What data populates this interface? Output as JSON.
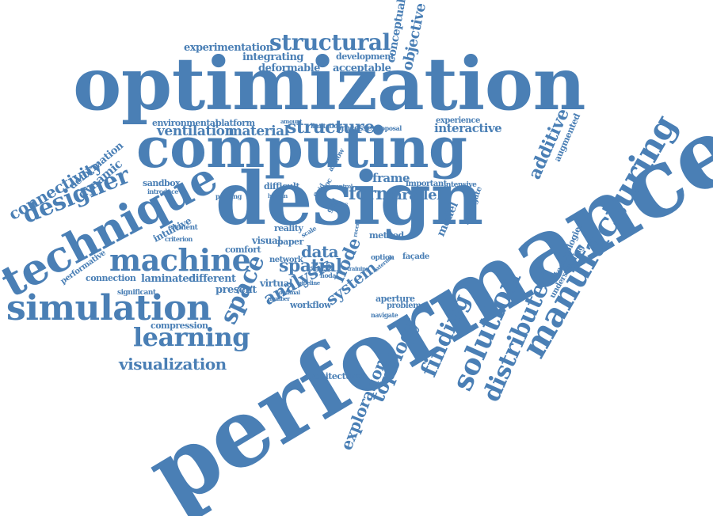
{
  "word_cloud": {
    "color": "#4a7fb5",
    "words": [
      {
        "id": "performance",
        "text": "performance"
      },
      {
        "id": "optimization",
        "text": "optimization"
      },
      {
        "id": "computing",
        "text": "computing"
      },
      {
        "id": "design",
        "text": "design"
      },
      {
        "id": "technique",
        "text": "technique"
      },
      {
        "id": "simulation",
        "text": "simulation"
      },
      {
        "id": "manufacturing",
        "text": "manufacturing"
      },
      {
        "id": "machine",
        "text": "machine"
      },
      {
        "id": "learning",
        "text": "learning"
      },
      {
        "id": "solution",
        "text": "solution"
      },
      {
        "id": "distributed",
        "text": "distributed"
      },
      {
        "id": "structural",
        "text": "structural"
      },
      {
        "id": "designer",
        "text": "designer"
      },
      {
        "id": "connectivity",
        "text": "connectivity"
      },
      {
        "id": "structure",
        "text": "structure"
      },
      {
        "id": "visualization",
        "text": "visualization"
      },
      {
        "id": "finding",
        "text": "finding"
      },
      {
        "id": "topology",
        "text": "topology"
      },
      {
        "id": "exploration",
        "text": "exploration"
      },
      {
        "id": "space",
        "text": "space"
      },
      {
        "id": "form",
        "text": "form"
      },
      {
        "id": "parallel",
        "text": "parallel"
      },
      {
        "id": "spatial",
        "text": "spatial"
      },
      {
        "id": "analysis",
        "text": "analysis"
      },
      {
        "id": "system",
        "text": "system"
      },
      {
        "id": "node",
        "text": "node"
      },
      {
        "id": "additive",
        "text": "additive"
      },
      {
        "id": "objective",
        "text": "objective"
      },
      {
        "id": "conceptual",
        "text": "conceptual"
      },
      {
        "id": "interactive",
        "text": "interactive"
      },
      {
        "id": "material",
        "text": "material"
      },
      {
        "id": "ventilation",
        "text": "ventilation"
      },
      {
        "id": "data",
        "text": "data"
      },
      {
        "id": "frame",
        "text": "frame"
      },
      {
        "id": "model",
        "text": "model"
      },
      {
        "id": "dynamic",
        "text": "dynamic"
      },
      {
        "id": "deformation",
        "text": "deformation"
      },
      {
        "id": "experimentation",
        "text": "experimentation"
      },
      {
        "id": "integrating",
        "text": "integrating"
      },
      {
        "id": "deformable",
        "text": "deformable"
      },
      {
        "id": "development",
        "text": "development"
      },
      {
        "id": "acceptable",
        "text": "acceptable"
      },
      {
        "id": "environmental",
        "text": "environmental"
      },
      {
        "id": "platform",
        "text": "platform"
      },
      {
        "id": "laminated",
        "text": "laminated"
      },
      {
        "id": "different",
        "text": "different"
      },
      {
        "id": "connection",
        "text": "connection"
      },
      {
        "id": "present",
        "text": "present"
      },
      {
        "id": "virtual",
        "text": "virtual"
      },
      {
        "id": "visual",
        "text": "visual"
      },
      {
        "id": "paper",
        "text": "paper"
      },
      {
        "id": "intuitive",
        "text": "intuitive"
      },
      {
        "id": "sandbox",
        "text": "sandbox"
      },
      {
        "id": "compression",
        "text": "compression"
      },
      {
        "id": "architectural",
        "text": "architectural"
      },
      {
        "id": "workflow",
        "text": "workflow"
      },
      {
        "id": "aperture",
        "text": "aperture"
      },
      {
        "id": "problem",
        "text": "problem"
      },
      {
        "id": "augmented",
        "text": "augmented"
      },
      {
        "id": "technologies",
        "text": "technologies"
      },
      {
        "id": "understanding",
        "text": "understanding"
      },
      {
        "id": "surrogate",
        "text": "surrogate"
      },
      {
        "id": "experience",
        "text": "experience"
      },
      {
        "id": "reality",
        "text": "reality"
      },
      {
        "id": "comfort",
        "text": "comfort"
      },
      {
        "id": "network",
        "text": "network"
      },
      {
        "id": "method",
        "text": "method"
      },
      {
        "id": "difficult",
        "text": "difficult"
      },
      {
        "id": "important",
        "text": "important"
      },
      {
        "id": "intensive",
        "text": "intensive"
      },
      {
        "id": "performative",
        "text": "performative"
      },
      {
        "id": "significant",
        "text": "significant"
      },
      {
        "id": "element",
        "text": "element"
      },
      {
        "id": "criterion",
        "text": "criterion"
      },
      {
        "id": "introduce",
        "text": "introduce"
      },
      {
        "id": "printing",
        "text": "printing"
      },
      {
        "id": "limitation",
        "text": "limitation"
      },
      {
        "id": "processes",
        "text": "processes"
      },
      {
        "id": "proposal",
        "text": "proposal"
      },
      {
        "id": "amount",
        "text": "amount"
      },
      {
        "id": "option",
        "text": "option"
      },
      {
        "id": "facade",
        "text": "façade"
      },
      {
        "id": "navigate",
        "text": "navigate"
      },
      {
        "id": "external",
        "text": "external"
      },
      {
        "id": "training",
        "text": "training"
      },
      {
        "id": "optimal",
        "text": "optimal"
      },
      {
        "id": "pipeline",
        "text": "pipeline"
      },
      {
        "id": "number",
        "text": "number"
      },
      {
        "id": "user",
        "text": "user"
      },
      {
        "id": "nodal",
        "text": "nodal"
      },
      {
        "id": "human",
        "text": "human"
      },
      {
        "id": "cross",
        "text": "cross"
      },
      {
        "id": "control",
        "text": "control"
      },
      {
        "id": "scale",
        "text": "scale"
      },
      {
        "id": "grid",
        "text": "grid"
      },
      {
        "id": "airflow",
        "text": "airflow"
      },
      {
        "id": "recent",
        "text": "recent"
      },
      {
        "id": "proc",
        "text": "proc"
      },
      {
        "id": "fluid",
        "text": "fluid"
      }
    ]
  }
}
